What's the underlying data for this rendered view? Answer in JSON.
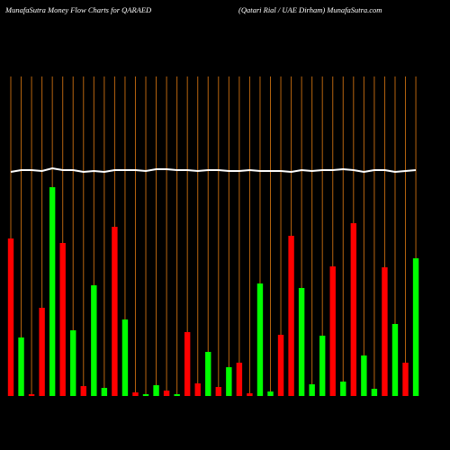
{
  "chart_data": {
    "type": "bar",
    "title": "MunafaSutra  Money Flow  Charts for QARAED",
    "subtitle": "(Qatari  Rial / UAE Dirham) MunafaSutra.com",
    "values": [
      175,
      65,
      2,
      98,
      232,
      170,
      73,
      11,
      123,
      9,
      188,
      85,
      4,
      2,
      12,
      6,
      2,
      71,
      14,
      49,
      10,
      32,
      37,
      3,
      125,
      5,
      68,
      178,
      120,
      13,
      67,
      144,
      16,
      192,
      45,
      8,
      143,
      80,
      37,
      153
    ],
    "colors": [
      "#ff0000",
      "#00ff00",
      "#ff0000",
      "#ff0000",
      "#00ff00",
      "#ff0000",
      "#00ff00",
      "#ff0000",
      "#00ff00",
      "#00ff00",
      "#ff0000",
      "#00ff00",
      "#ff0000",
      "#00ff00",
      "#00ff00",
      "#ff0000",
      "#00ff00",
      "#ff0000",
      "#ff0000",
      "#00ff00",
      "#ff0000",
      "#00ff00",
      "#ff0000",
      "#ff0000",
      "#00ff00",
      "#00ff00",
      "#ff0000",
      "#ff0000",
      "#00ff00",
      "#00ff00",
      "#00ff00",
      "#ff0000",
      "#00ff00",
      "#ff0000",
      "#00ff00",
      "#00ff00",
      "#ff0000",
      "#00ff00",
      "#ff0000",
      "#00ff00"
    ],
    "line": {
      "color": "#ffffff",
      "values": [
        249,
        251,
        251,
        250,
        253,
        251,
        251,
        249,
        250,
        249,
        251,
        251,
        251,
        250,
        252,
        252,
        251,
        251,
        250,
        251,
        251,
        250,
        250,
        251,
        250,
        250,
        250,
        249,
        251,
        250,
        251,
        251,
        252,
        251,
        249,
        251,
        251,
        249,
        250,
        251
      ]
    },
    "ylim": [
      0,
      355
    ],
    "gridline_color": "#b8650f"
  }
}
